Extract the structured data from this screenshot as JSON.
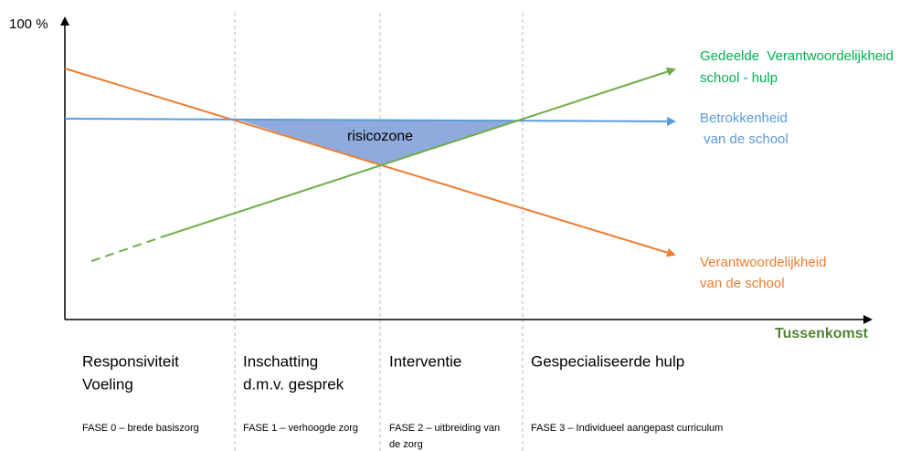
{
  "y_axis_label": "100 %",
  "x_axis_label": "Tussenkomst",
  "zone_label": "risicozone",
  "line_labels": {
    "shared": [
      "Gedeelde  Verantwoordelijkheid",
      "school - hulp"
    ],
    "involvement": [
      "Betrokkenheid",
      " van de school"
    ],
    "responsibility": [
      "Verantwoordelijkheid",
      "van de school"
    ]
  },
  "phases": [
    {
      "title": [
        "Responsiviteit",
        "Voeling"
      ],
      "fase": [
        "FASE 0 – brede basiszorg"
      ]
    },
    {
      "title": [
        "Inschatting",
        "d.m.v. gesprek"
      ],
      "fase": [
        "FASE 1 – verhoogde zorg"
      ]
    },
    {
      "title": [
        "Interventie"
      ],
      "fase": [
        "FASE 2 – uitbreiding van",
        "de zorg"
      ]
    },
    {
      "title": [
        "Gespecialiseerde hulp"
      ],
      "fase": [
        "FASE 3 – Individueel aangepast curriculum"
      ]
    }
  ]
}
